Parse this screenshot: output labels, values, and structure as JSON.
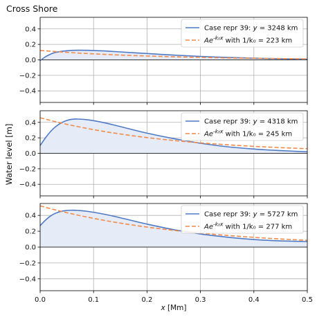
{
  "figure": {
    "title": "Cross Shore",
    "ylabel": "Water level [m]",
    "xlabel": "x [Mm]"
  },
  "colors": {
    "series_case": "#4e79c5",
    "series_fit": "#f28a4a",
    "fill": "#e6ecf7",
    "grid": "#b0b0b0",
    "zero_line": "#333333"
  },
  "chart_data": [
    {
      "type": "line",
      "panel": 1,
      "xlim": [
        0,
        0.5
      ],
      "ylim": [
        -0.55,
        0.55
      ],
      "yticks": [
        -0.4,
        -0.2,
        0.0,
        0.2,
        0.4
      ],
      "xticks": [
        0.0,
        0.1,
        0.2,
        0.3,
        0.4,
        0.5
      ],
      "grid": true,
      "legend_position": "top-right",
      "series": [
        {
          "name": "Case repr 39: y = 3248 km",
          "style": "solid",
          "x": [
            0,
            0.01,
            0.02,
            0.03,
            0.05,
            0.07,
            0.09,
            0.12,
            0.15,
            0.2,
            0.25,
            0.3,
            0.35,
            0.4,
            0.45,
            0.5
          ],
          "y": [
            -0.01,
            0.04,
            0.075,
            0.098,
            0.118,
            0.124,
            0.123,
            0.115,
            0.103,
            0.082,
            0.062,
            0.045,
            0.032,
            0.022,
            0.014,
            0.008
          ]
        },
        {
          "name": "Ae^{-k0 x} with 1/k0 = 223 km",
          "style": "dashed",
          "fit": {
            "A": 0.122,
            "inv_k0": 0.223
          }
        }
      ],
      "legend": [
        {
          "text": "Case repr 39: y = 3248 km",
          "style": "solid"
        },
        {
          "text": "Ae^{-k₀x} with 1/k₀ = 223 km",
          "style": "dashed"
        }
      ]
    },
    {
      "type": "line",
      "panel": 2,
      "xlim": [
        0,
        0.5
      ],
      "ylim": [
        -0.55,
        0.55
      ],
      "yticks": [
        -0.4,
        -0.2,
        0.0,
        0.2,
        0.4
      ],
      "xticks": [
        0.0,
        0.1,
        0.2,
        0.3,
        0.4,
        0.5
      ],
      "grid": true,
      "legend_position": "top-right",
      "series": [
        {
          "name": "Case repr 39: y = 4318 km",
          "style": "solid",
          "x": [
            0,
            0.01,
            0.02,
            0.03,
            0.04,
            0.05,
            0.06,
            0.07,
            0.09,
            0.12,
            0.15,
            0.2,
            0.25,
            0.3,
            0.35,
            0.4,
            0.45,
            0.5
          ],
          "y": [
            0.1,
            0.2,
            0.285,
            0.35,
            0.395,
            0.425,
            0.44,
            0.443,
            0.432,
            0.395,
            0.345,
            0.26,
            0.19,
            0.13,
            0.085,
            0.055,
            0.035,
            0.02
          ]
        },
        {
          "name": "Ae^{-k0 x} with 1/k0 = 245 km",
          "style": "dashed",
          "fit": {
            "A": 0.46,
            "inv_k0": 0.245
          }
        }
      ],
      "legend": [
        {
          "text": "Case repr 39: y = 4318 km",
          "style": "solid"
        },
        {
          "text": "Ae^{-k₀x} with 1/k₀ = 245 km",
          "style": "dashed"
        }
      ]
    },
    {
      "type": "line",
      "panel": 3,
      "xlim": [
        0,
        0.5
      ],
      "ylim": [
        -0.55,
        0.55
      ],
      "yticks": [
        -0.4,
        -0.2,
        0.0,
        0.2,
        0.4
      ],
      "xticks": [
        0.0,
        0.1,
        0.2,
        0.3,
        0.4,
        0.5
      ],
      "xticklabels": [
        "0.0",
        "0.1",
        "0.2",
        "0.3",
        "0.4",
        "0.5"
      ],
      "grid": true,
      "legend_position": "top-right",
      "series": [
        {
          "name": "Case repr 39: y = 5727 km",
          "style": "solid",
          "x": [
            0,
            0.01,
            0.02,
            0.03,
            0.04,
            0.05,
            0.06,
            0.07,
            0.09,
            0.12,
            0.15,
            0.2,
            0.25,
            0.3,
            0.35,
            0.4,
            0.45,
            0.5
          ],
          "y": [
            0.27,
            0.34,
            0.395,
            0.43,
            0.452,
            0.462,
            0.465,
            0.463,
            0.45,
            0.415,
            0.37,
            0.29,
            0.22,
            0.165,
            0.125,
            0.095,
            0.078,
            0.07
          ]
        },
        {
          "name": "Ae^{-k0 x} with 1/k0 = 277 km",
          "style": "dashed",
          "fit": {
            "A": 0.52,
            "inv_k0": 0.277
          }
        }
      ],
      "legend": [
        {
          "text": "Case repr 39: y = 5727 km",
          "style": "solid"
        },
        {
          "text": "Ae^{-k₀x} with 1/k₀ = 277 km",
          "style": "dashed"
        }
      ]
    }
  ]
}
